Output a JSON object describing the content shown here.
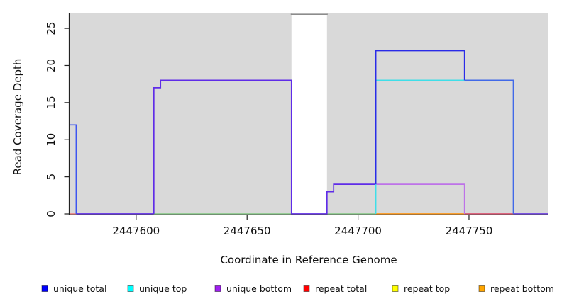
{
  "chart_data": {
    "type": "line",
    "subtype": "step-coverage",
    "xlabel": "Coordinate in Reference Genome",
    "ylabel": "Read Coverage Depth",
    "xlim": [
      2447570,
      2447785.5
    ],
    "ylim": [
      0,
      27.06
    ],
    "x_ticks": [
      {
        "value": 2447600,
        "label": "2447600"
      },
      {
        "value": 2447650,
        "label": "2447650"
      },
      {
        "value": 2447700,
        "label": "2447700"
      },
      {
        "value": 2447750,
        "label": "2447750"
      }
    ],
    "y_ticks": [
      {
        "value": 0,
        "label": "0"
      },
      {
        "value": 5,
        "label": "5"
      },
      {
        "value": 10,
        "label": "10"
      },
      {
        "value": 15,
        "label": "15"
      },
      {
        "value": 20,
        "label": "20"
      },
      {
        "value": 25,
        "label": "25"
      }
    ],
    "plot_background": "#D9D9D9",
    "masked_region": {
      "x_start": 2447670,
      "x_end": 2447686,
      "fill": "#FFFFFF",
      "top_line_color": "#8C8C8C",
      "top_line_depth": 26.9
    },
    "series_segments": [
      {
        "name": "zero-repeat-total-left",
        "color": "#F08080",
        "points": [
          [
            2447570,
            0
          ],
          [
            2447573,
            0
          ]
        ]
      },
      {
        "name": "zero-unique-left",
        "color": "#5F2CE8",
        "points": [
          [
            2447573,
            0
          ],
          [
            2447608,
            0
          ]
        ]
      },
      {
        "name": "zero-green-under-gene1",
        "color": "#8CCA8C",
        "points": [
          [
            2447608,
            0
          ],
          [
            2447670,
            0
          ]
        ]
      },
      {
        "name": "zero-green-gene2-left",
        "color": "#8CCA8C",
        "points": [
          [
            2447686,
            0
          ],
          [
            2447708,
            0
          ]
        ]
      },
      {
        "name": "zero-repeat-bottom-orange",
        "color": "#FF9818",
        "points": [
          [
            2447708,
            0
          ],
          [
            2447748,
            0
          ]
        ]
      },
      {
        "name": "zero-repeat-total-red",
        "color": "#DC5370",
        "points": [
          [
            2447748,
            0
          ],
          [
            2447770,
            0
          ]
        ]
      },
      {
        "name": "zero-unique-right",
        "color": "#6B3FE0",
        "points": [
          [
            2447770,
            0
          ],
          [
            2447785.5,
            0
          ]
        ]
      },
      {
        "name": "unique-spike-depth12",
        "color": "#3D55F0",
        "points": [
          [
            2447570,
            12
          ],
          [
            2447573,
            12
          ],
          [
            2447573,
            0
          ]
        ]
      },
      {
        "name": "unique-gene1-outline",
        "color": "#5F2CE8",
        "points": [
          [
            2447608,
            0
          ],
          [
            2447608,
            17
          ],
          [
            2447611,
            17
          ],
          [
            2447611,
            18
          ],
          [
            2447670,
            18
          ],
          [
            2447670,
            0
          ],
          [
            2447686,
            0
          ],
          [
            2447686,
            3
          ],
          [
            2447689,
            3
          ],
          [
            2447689,
            4
          ],
          [
            2447708,
            4
          ]
        ]
      },
      {
        "name": "unique-bottom-depth4",
        "color": "#BE72E8",
        "points": [
          [
            2447708,
            4
          ],
          [
            2447748,
            4
          ],
          [
            2447748,
            0
          ]
        ]
      },
      {
        "name": "unique-top-depth18",
        "color": "#3FDEE8",
        "points": [
          [
            2447708,
            0
          ],
          [
            2447708,
            18
          ],
          [
            2447748,
            18
          ]
        ]
      },
      {
        "name": "unique-total-depth22",
        "color": "#2A2BE8",
        "points": [
          [
            2447708,
            4
          ],
          [
            2447708,
            22
          ],
          [
            2447748,
            22
          ],
          [
            2447748,
            18
          ]
        ]
      },
      {
        "name": "unique-total-depth18-right",
        "color": "#4169E8",
        "points": [
          [
            2447748,
            18
          ],
          [
            2447770,
            18
          ],
          [
            2447770,
            0
          ]
        ]
      }
    ],
    "legend": [
      {
        "label": "unique total",
        "color": "#0000FF"
      },
      {
        "label": "unique top",
        "color": "#00FFFF"
      },
      {
        "label": "unique bottom",
        "color": "#A020F0"
      },
      {
        "label": "repeat total",
        "color": "#FF0000"
      },
      {
        "label": "repeat top",
        "color": "#FFFF00"
      },
      {
        "label": "repeat bottom",
        "color": "#FFA500"
      }
    ],
    "legend_position": "bottom",
    "grid": false
  }
}
